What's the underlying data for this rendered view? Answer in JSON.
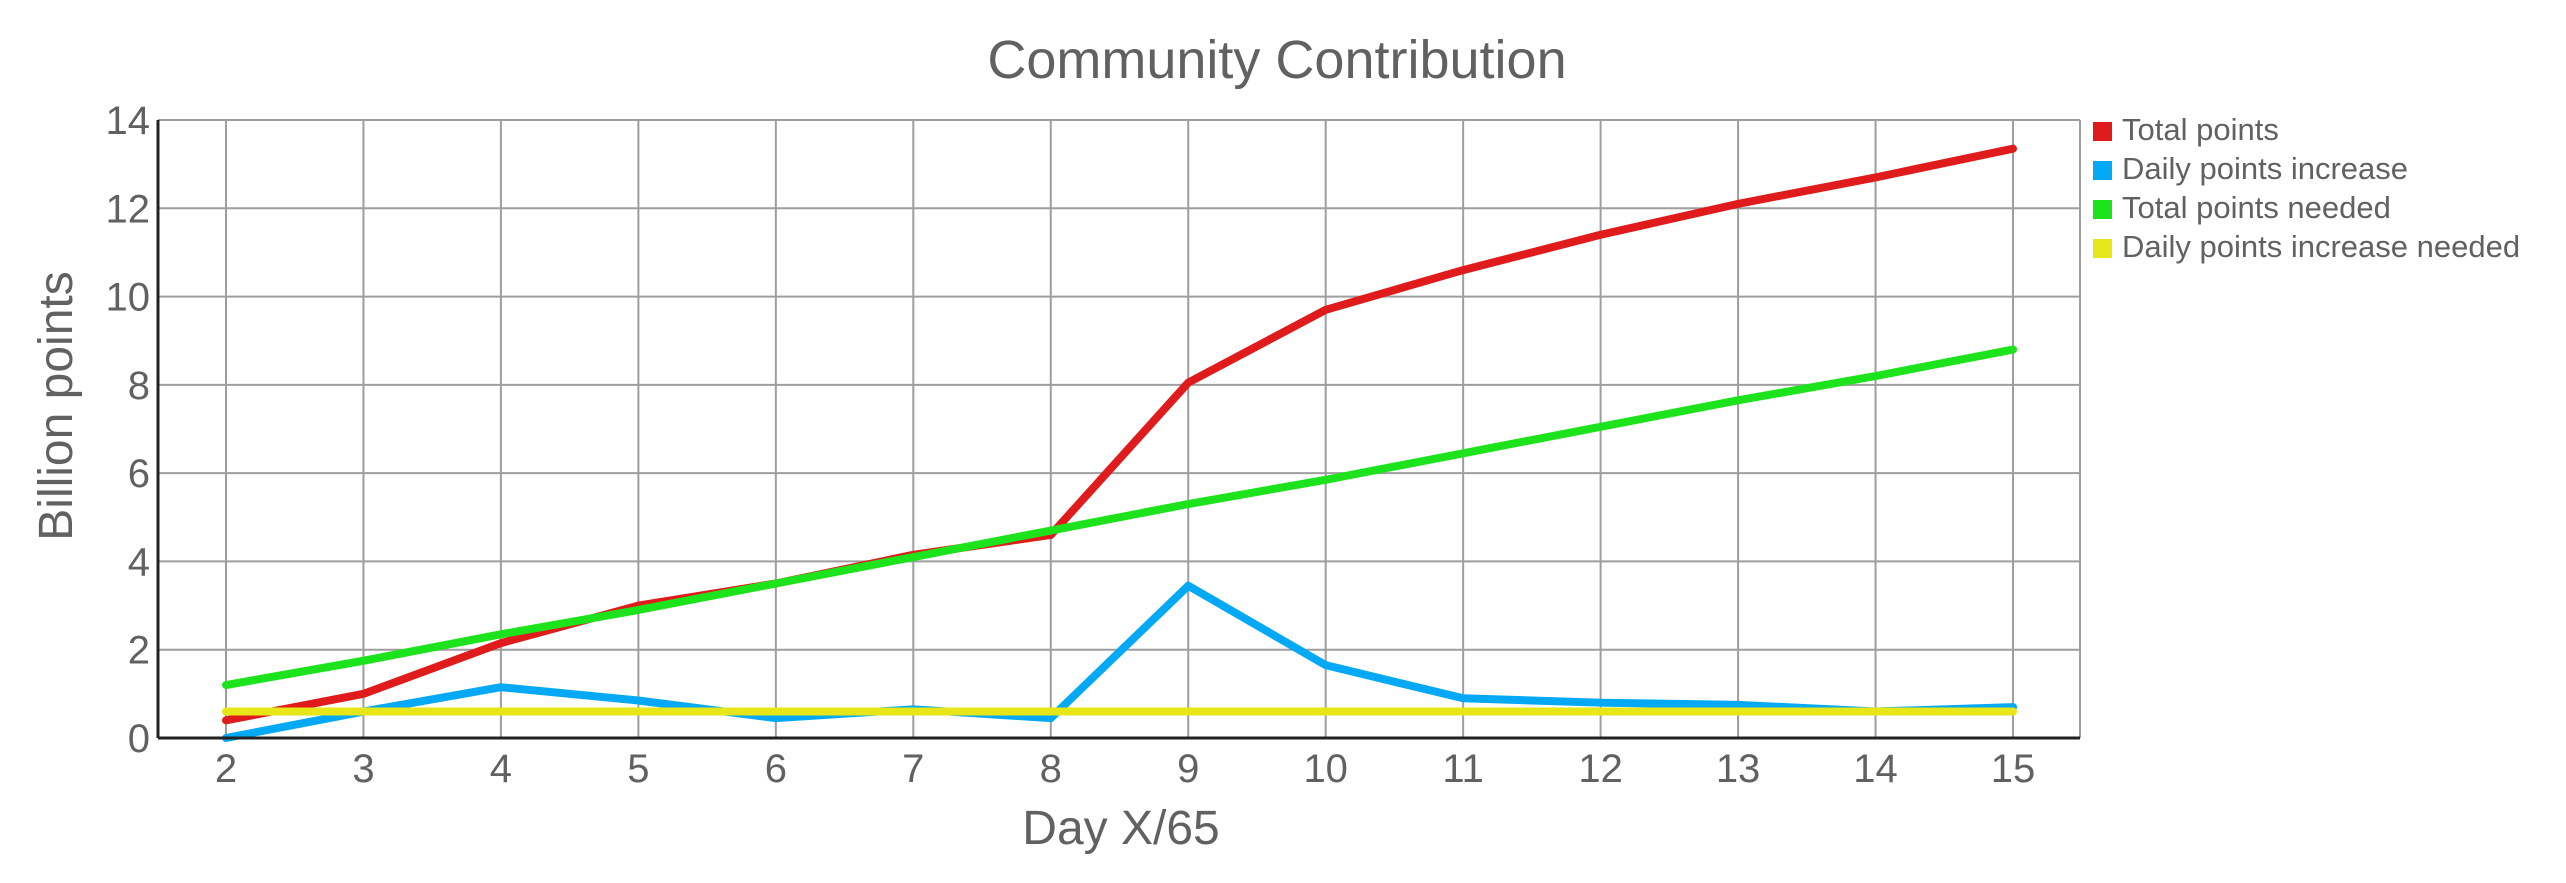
{
  "chart_data": {
    "type": "line",
    "title": "Community Contribution",
    "xlabel": "Day X/65",
    "ylabel": "Billion points",
    "x": [
      2,
      3,
      4,
      5,
      6,
      7,
      8,
      9,
      10,
      11,
      12,
      13,
      14,
      15
    ],
    "xlim": [
      2,
      15
    ],
    "ylim": [
      0,
      14
    ],
    "yticks": [
      0,
      2,
      4,
      6,
      8,
      10,
      12,
      14
    ],
    "grid": true,
    "legend": "right",
    "series": [
      {
        "name": "Total points",
        "color": "#e01b1b",
        "values": [
          0.4,
          1.0,
          2.15,
          3.0,
          3.5,
          4.15,
          4.6,
          8.05,
          9.7,
          10.6,
          11.4,
          12.1,
          12.7,
          13.35
        ]
      },
      {
        "name": "Daily points increase",
        "color": "#03a9f4",
        "values": [
          0.0,
          0.6,
          1.15,
          0.85,
          0.45,
          0.65,
          0.45,
          3.45,
          1.65,
          0.9,
          0.8,
          0.75,
          0.6,
          0.7
        ]
      },
      {
        "name": "Total points needed",
        "color": "#1de31d",
        "values": [
          1.2,
          1.75,
          2.35,
          2.9,
          3.5,
          4.1,
          4.7,
          5.3,
          5.85,
          6.45,
          7.05,
          7.65,
          8.2,
          8.8
        ]
      },
      {
        "name": "Daily points increase needed",
        "color": "#e6e619",
        "values": [
          0.6,
          0.6,
          0.6,
          0.6,
          0.6,
          0.6,
          0.6,
          0.6,
          0.6,
          0.6,
          0.6,
          0.6,
          0.6,
          0.6
        ]
      }
    ]
  }
}
